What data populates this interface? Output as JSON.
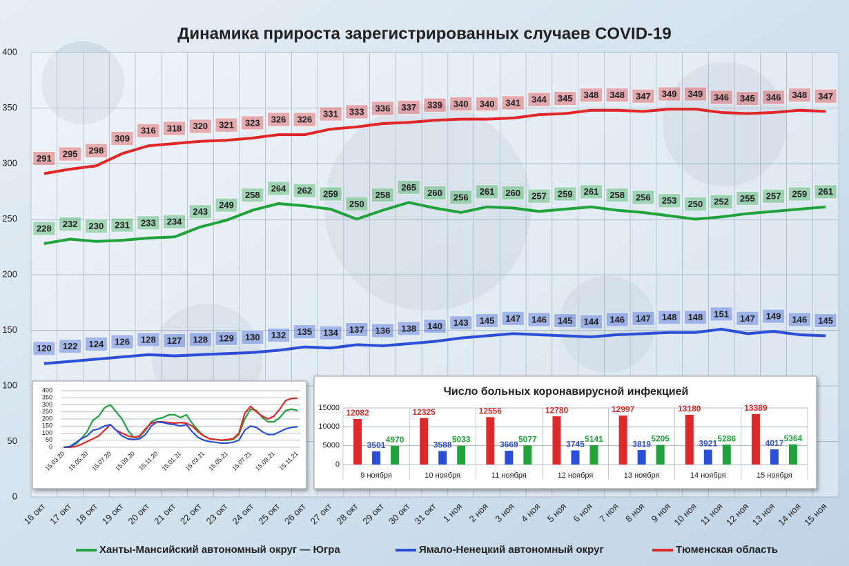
{
  "chart_data": [
    {
      "type": "line",
      "title": "Динамика прироста зарегистрированных случаев COVID-19",
      "categories": [
        "16 окт",
        "17 окт",
        "18 окт",
        "19 окт",
        "20 окт",
        "21 окт",
        "22 окт",
        "23 окт",
        "24 окт",
        "25 окт",
        "26 окт",
        "27 окт",
        "28 окт",
        "29 окт",
        "30 окт",
        "31 окт",
        "1 ноя",
        "2 ноя",
        "3 ноя",
        "4 ноя",
        "5 ноя",
        "6 ноя",
        "7 ноя",
        "8 ноя",
        "9 ноя",
        "10 ноя",
        "11 ноя",
        "12 ноя",
        "13 ноя",
        "14 ноя",
        "15 ноя"
      ],
      "series": [
        {
          "name": "Ханты-Мансийский автономный округ — Югра",
          "color": "#1fa33a",
          "values": [
            228,
            232,
            230,
            231,
            233,
            234,
            243,
            249,
            258,
            264,
            262,
            259,
            250,
            258,
            265,
            260,
            256,
            261,
            260,
            257,
            259,
            261,
            258,
            256,
            253,
            250,
            252,
            255,
            257,
            259,
            261
          ]
        },
        {
          "name": "Ямало-Ненецкий автономный округ",
          "color": "#2b4fd8",
          "values": [
            120,
            122,
            124,
            126,
            128,
            127,
            128,
            129,
            130,
            132,
            135,
            134,
            137,
            136,
            138,
            140,
            143,
            145,
            147,
            146,
            145,
            144,
            146,
            147,
            148,
            148,
            151,
            147,
            149,
            146,
            145
          ]
        },
        {
          "name": "Тюменская область",
          "color": "#e02828",
          "values": [
            291,
            295,
            298,
            309,
            316,
            318,
            320,
            321,
            323,
            326,
            326,
            331,
            333,
            336,
            337,
            339,
            340,
            340,
            341,
            344,
            345,
            348,
            348,
            347,
            349,
            349,
            346,
            345,
            346,
            348,
            347
          ]
        }
      ],
      "ylim": [
        0,
        400
      ],
      "yticks": [
        0,
        50,
        100,
        150,
        200,
        250,
        300,
        350,
        400
      ],
      "grid": true,
      "data_labels": true,
      "legend": "bottom"
    },
    {
      "type": "line",
      "categories": [
        "15.03.20",
        null,
        null,
        null,
        "15.05.20",
        null,
        null,
        null,
        "15.07.20",
        null,
        null,
        null,
        "15.09.20",
        null,
        null,
        null,
        "15.11.20",
        null,
        null,
        null,
        "15.01.21",
        null,
        null,
        null,
        "15.03.21",
        null,
        null,
        null,
        "15.05.21",
        null,
        null,
        null,
        "15.07.21",
        null,
        null,
        null,
        "15.09.21",
        null,
        null,
        null,
        "15.11.21"
      ],
      "series": [
        {
          "color": "#1fa33a",
          "values": [
            0,
            2,
            20,
            60,
            110,
            190,
            220,
            280,
            300,
            250,
            200,
            120,
            70,
            75,
            120,
            180,
            200,
            210,
            230,
            230,
            210,
            230,
            170,
            120,
            80,
            60,
            55,
            50,
            50,
            55,
            90,
            200,
            270,
            260,
            210,
            180,
            180,
            210,
            260,
            270,
            260
          ]
        },
        {
          "color": "#e02828",
          "values": [
            0,
            0,
            5,
            20,
            40,
            60,
            80,
            120,
            160,
            120,
            100,
            80,
            70,
            80,
            130,
            170,
            180,
            180,
            175,
            170,
            175,
            170,
            150,
            110,
            80,
            60,
            55,
            50,
            55,
            60,
            100,
            240,
            290,
            250,
            220,
            200,
            220,
            270,
            330,
            345,
            347
          ]
        },
        {
          "color": "#2b4fd8",
          "values": [
            0,
            5,
            30,
            60,
            80,
            120,
            130,
            150,
            160,
            120,
            80,
            60,
            55,
            60,
            90,
            150,
            180,
            175,
            165,
            160,
            150,
            160,
            110,
            70,
            50,
            40,
            35,
            30,
            30,
            35,
            50,
            120,
            150,
            140,
            110,
            90,
            90,
            110,
            130,
            140,
            145
          ]
        }
      ],
      "ylim": [
        0,
        400
      ],
      "yticks": [
        0,
        50,
        100,
        150,
        200,
        250,
        300,
        350,
        400
      ],
      "grid": true
    },
    {
      "type": "bar",
      "title": "Число больных коронавирусной инфекцией",
      "categories": [
        "9 ноября",
        "10 ноября",
        "11 ноября",
        "12 ноября",
        "13 ноября",
        "14 ноября",
        "15 ноября"
      ],
      "series": [
        {
          "color": "#e02828",
          "values": [
            12082,
            12325,
            12556,
            12780,
            12997,
            13180,
            13389
          ]
        },
        {
          "color": "#2b4fd8",
          "values": [
            3501,
            3588,
            3669,
            3745,
            3819,
            3921,
            4017
          ]
        },
        {
          "color": "#1fa33a",
          "values": [
            4970,
            5033,
            5077,
            5141,
            5205,
            5286,
            5364
          ]
        }
      ],
      "ylim": [
        0,
        15000
      ],
      "yticks": [
        0,
        5000,
        10000,
        15000
      ],
      "grid": true,
      "data_labels": true
    }
  ]
}
